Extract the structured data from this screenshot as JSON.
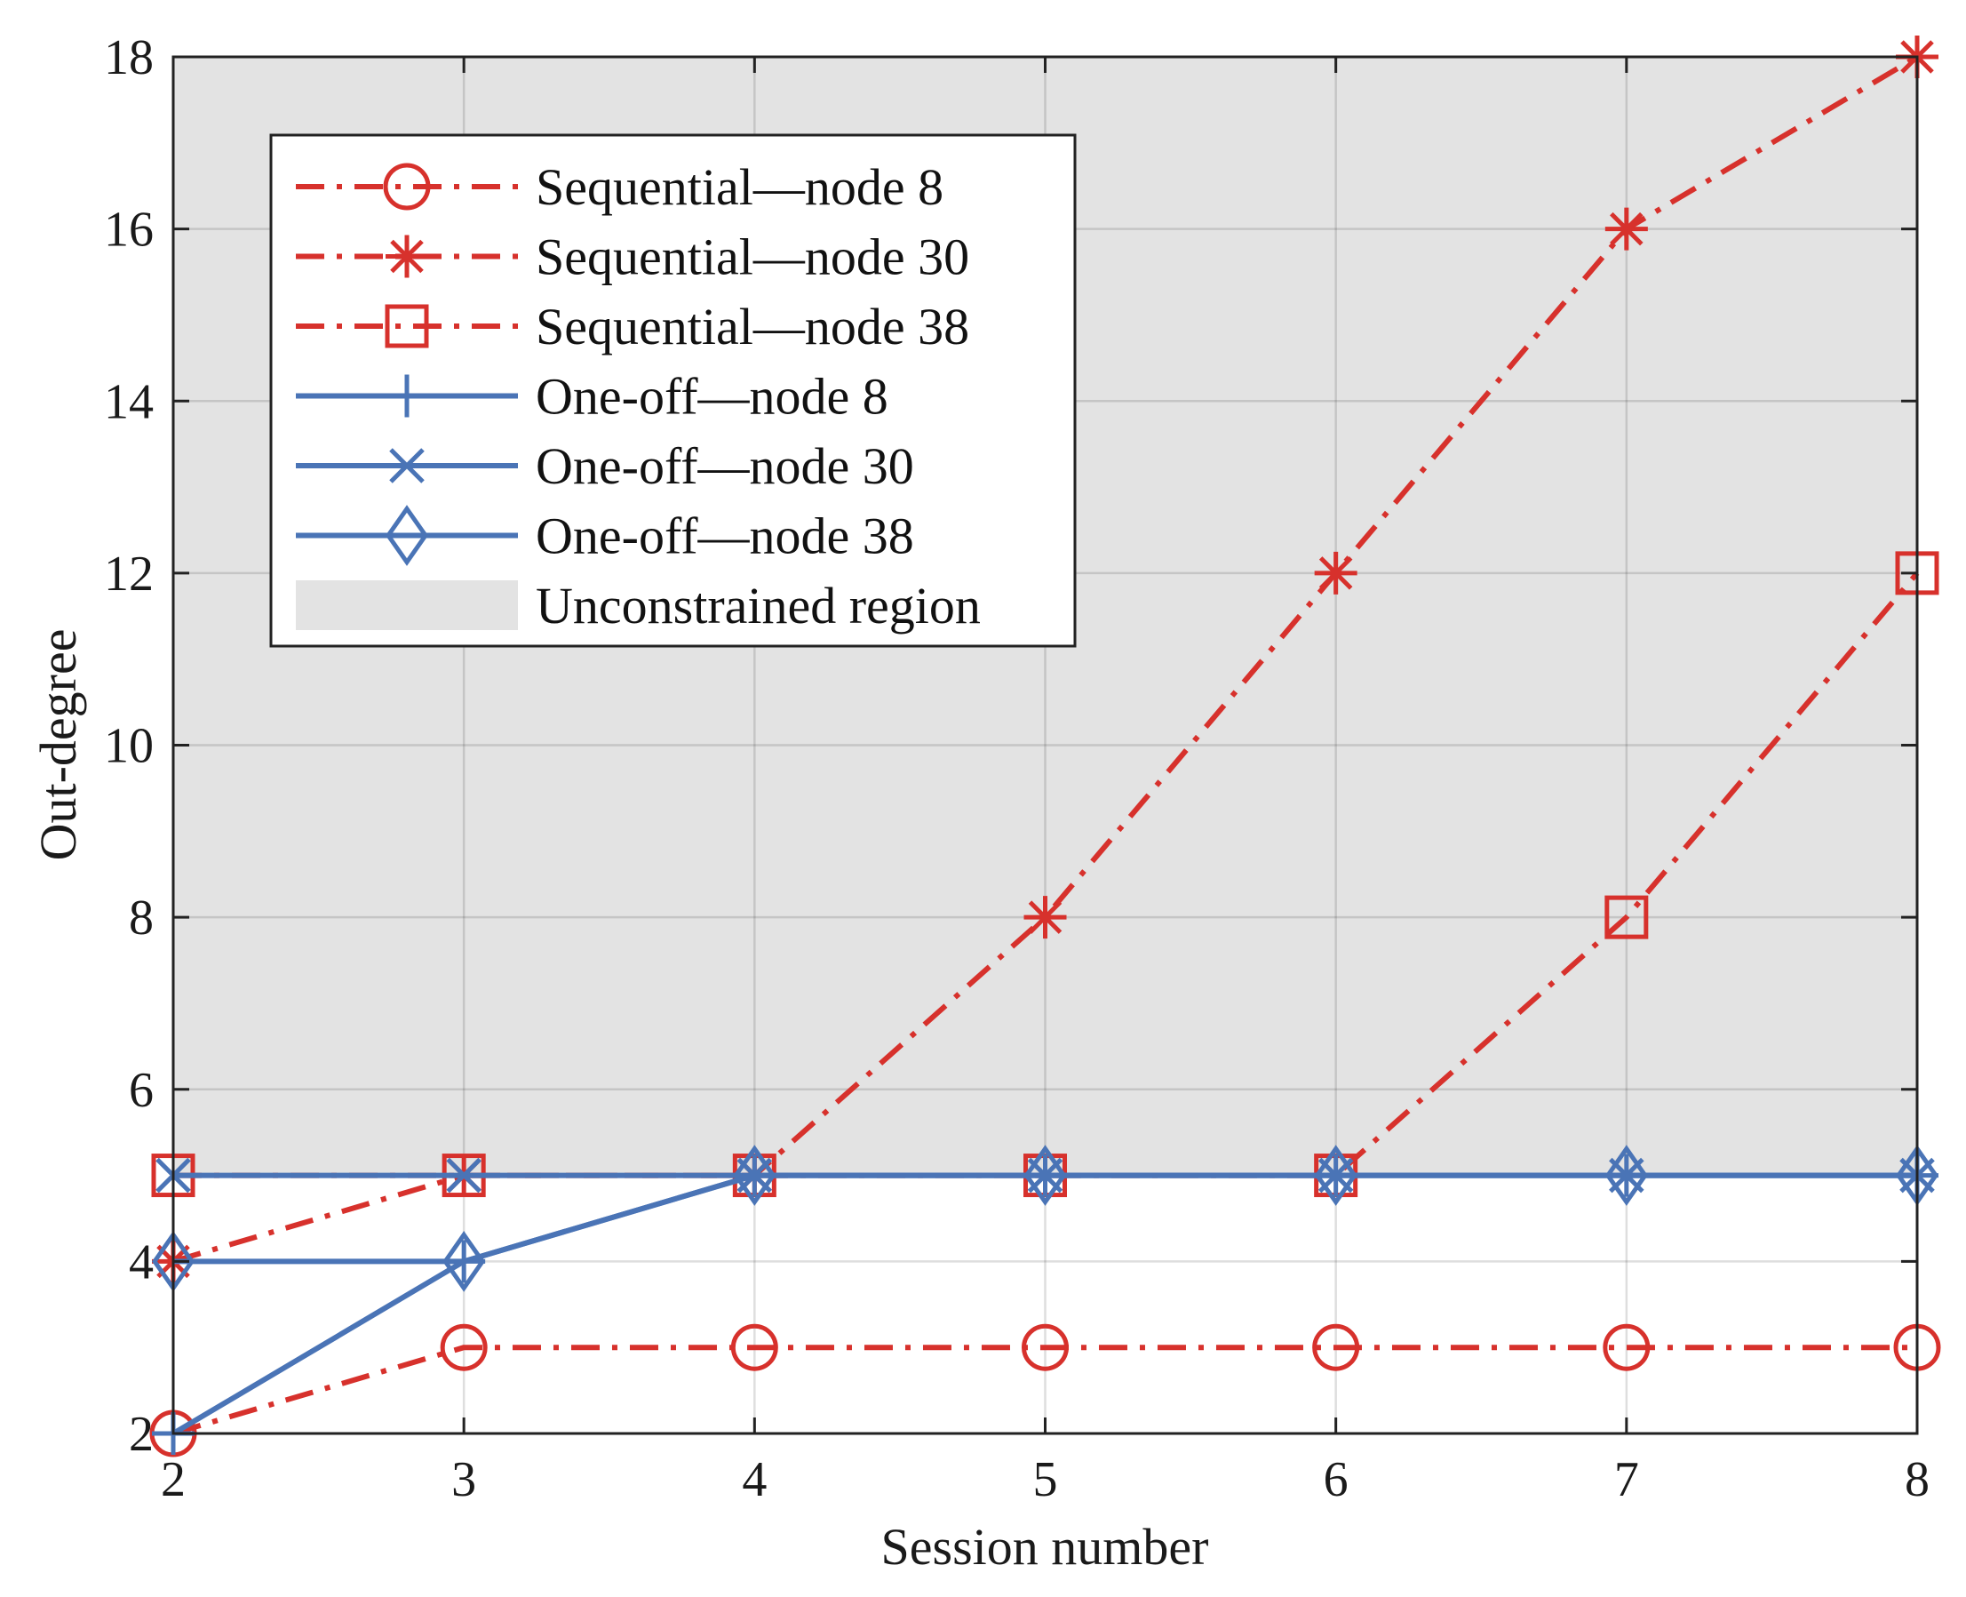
{
  "chart_data": {
    "type": "line",
    "title": "",
    "xlabel": "Session number",
    "ylabel": "Out-degree",
    "xlim": [
      2,
      8
    ],
    "ylim": [
      2,
      18
    ],
    "x_ticks": [
      2,
      3,
      4,
      5,
      6,
      7,
      8
    ],
    "y_ticks": [
      2,
      4,
      6,
      8,
      10,
      12,
      14,
      16,
      18
    ],
    "grid": true,
    "legend_position": "top-left",
    "shaded_region": {
      "label": "Unconstrained region",
      "y_from": 5,
      "y_to": 18,
      "color": "#e3e3e3"
    },
    "x": [
      2,
      3,
      4,
      5,
      6,
      7,
      8
    ],
    "series": [
      {
        "name": "Sequential—node 8",
        "values": [
          2,
          3,
          3,
          3,
          3,
          3,
          3
        ],
        "color": "#d7312c",
        "style": "dashdot",
        "marker": "circle"
      },
      {
        "name": "Sequential—node 30",
        "values": [
          4,
          5,
          5,
          8,
          12,
          16,
          18
        ],
        "color": "#d7312c",
        "style": "dashdot",
        "marker": "asterisk"
      },
      {
        "name": "Sequential—node 38",
        "values": [
          5,
          5,
          5,
          5,
          5,
          8,
          12
        ],
        "color": "#d7312c",
        "style": "dashdot",
        "marker": "square"
      },
      {
        "name": "One-off—node 8",
        "values": [
          2,
          4,
          5,
          5,
          5,
          5,
          5
        ],
        "color": "#4a74b6",
        "style": "solid",
        "marker": "plus"
      },
      {
        "name": "One-off—node 30",
        "values": [
          5,
          5,
          5,
          5,
          5,
          5,
          5
        ],
        "color": "#4a74b6",
        "style": "solid",
        "marker": "x"
      },
      {
        "name": "One-off—node 38",
        "values": [
          4,
          4,
          5,
          5,
          5,
          5,
          5
        ],
        "color": "#4a74b6",
        "style": "solid",
        "marker": "diamond"
      }
    ]
  }
}
